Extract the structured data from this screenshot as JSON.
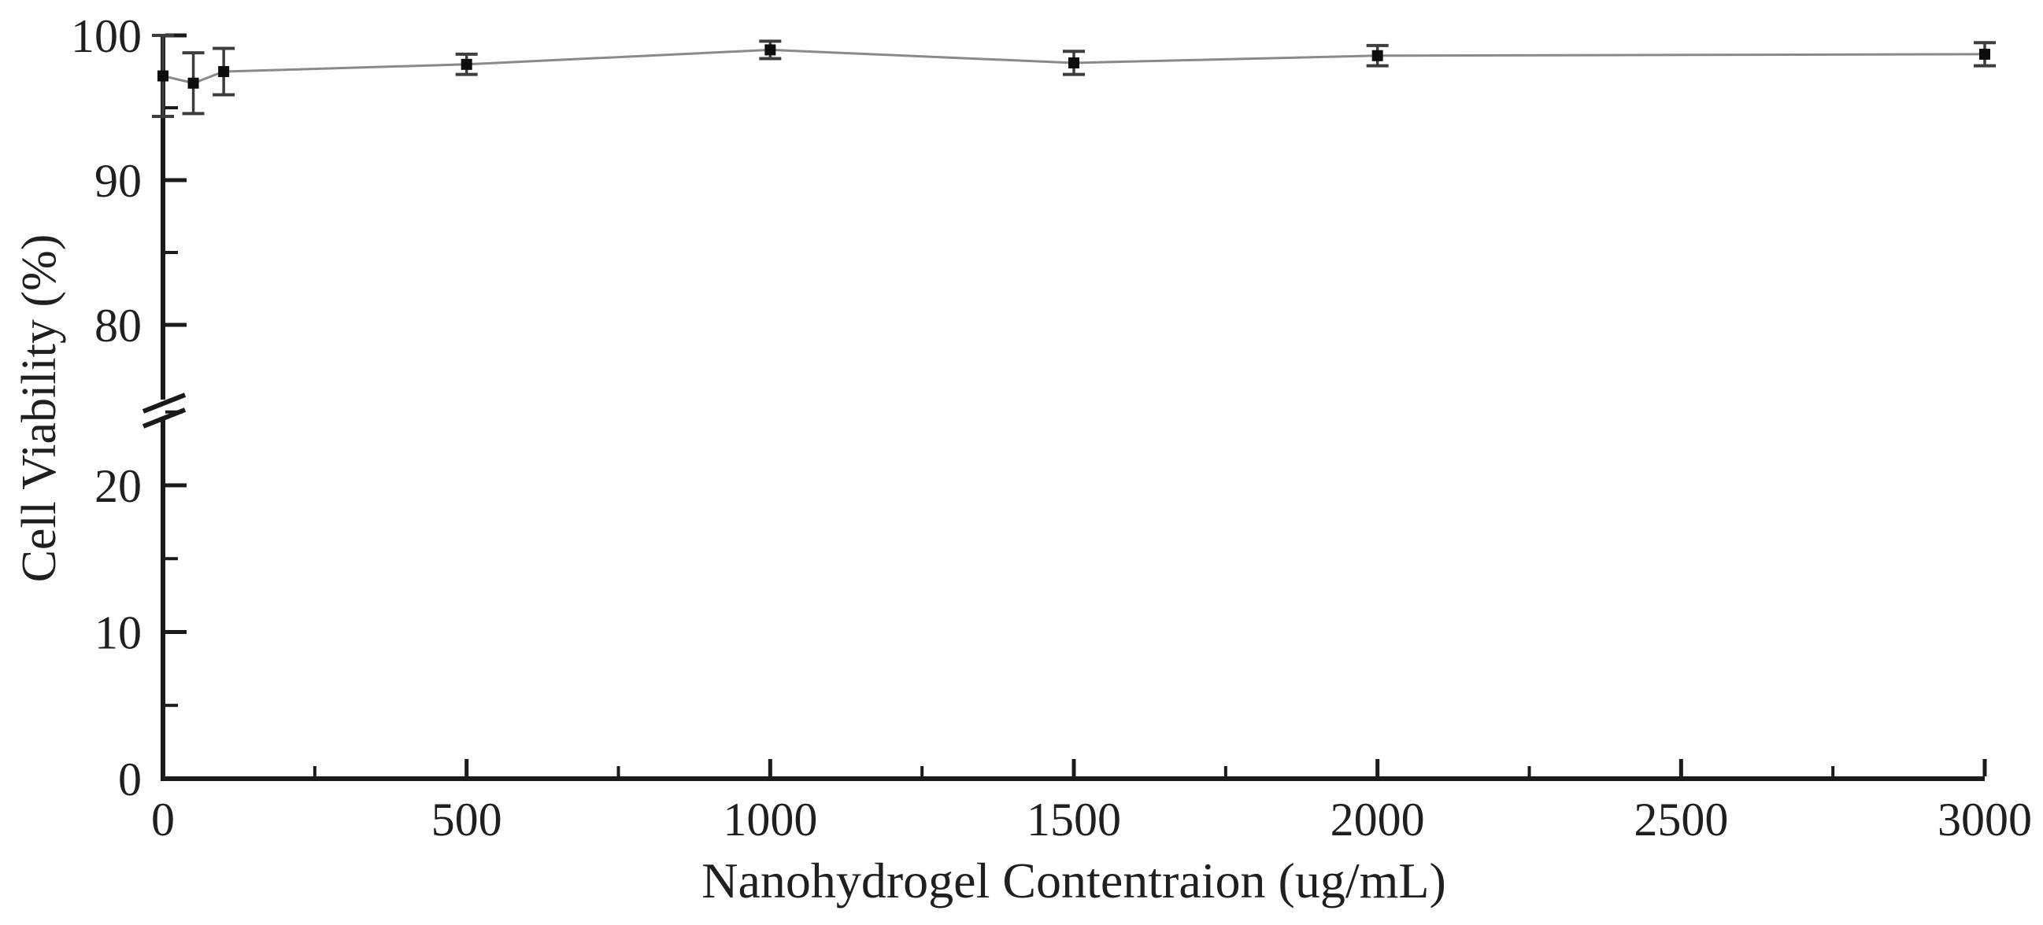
{
  "chart_data": {
    "type": "line",
    "title": "",
    "xlabel": "Nanohydrogel Contentraion (ug/mL)",
    "ylabel": "Cell Viability (%)",
    "series": [
      {
        "name": "cell-viability",
        "x": [
          0,
          50,
          100,
          500,
          1000,
          1500,
          2000,
          3000
        ],
        "y": [
          97.2,
          96.7,
          97.5,
          98.0,
          99.0,
          98.1,
          98.6,
          98.7
        ],
        "yerr": [
          2.8,
          2.1,
          1.6,
          0.7,
          0.6,
          0.8,
          0.7,
          0.8
        ],
        "marker": "filled-square",
        "line_style": "solid"
      }
    ],
    "xlim": [
      0,
      3000
    ],
    "y_axis_break": [
      25,
      75
    ],
    "ylim_lower_segment": [
      0,
      25
    ],
    "ylim_upper_segment": [
      75,
      100
    ],
    "x_ticks_major": [
      0,
      500,
      1000,
      1500,
      2000,
      2500,
      3000
    ],
    "x_ticks_minor": [
      250,
      750,
      1250,
      1750,
      2250,
      2750
    ],
    "y_ticks_major": [
      0,
      10,
      20,
      80,
      90,
      100
    ],
    "y_ticks_minor": [
      5,
      15,
      25,
      85,
      95
    ],
    "grid": false,
    "legend": false,
    "colors": {
      "axis": "#1a1a1a",
      "text": "#1f1f1f",
      "line": "#8a8a8a",
      "error_bar": "#3d3d3d",
      "marker": "#0d0d0d",
      "background": "#ffffff"
    }
  }
}
